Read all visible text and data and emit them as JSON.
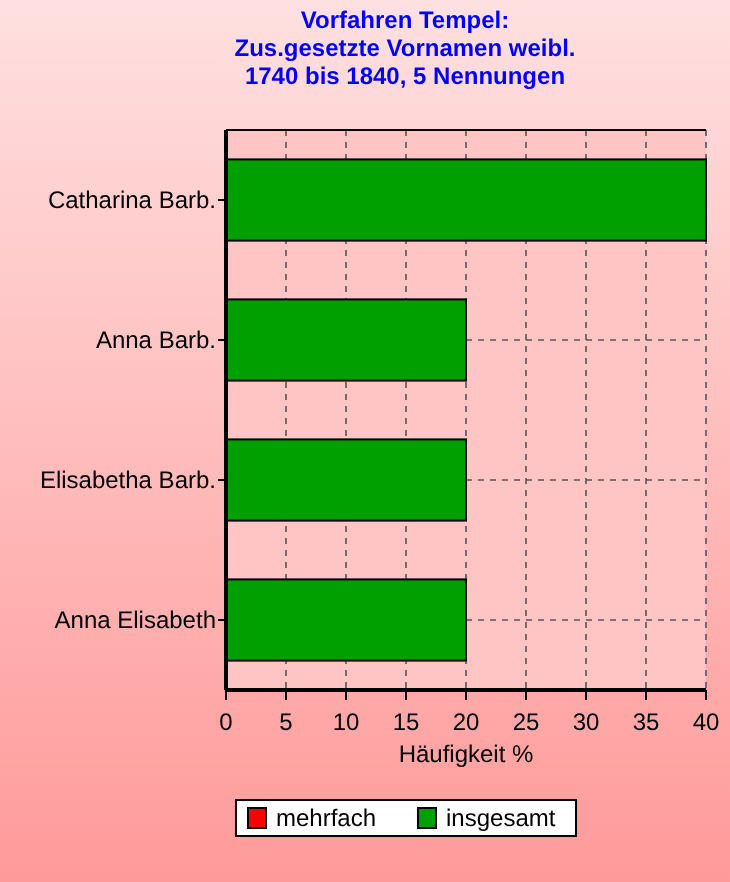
{
  "chart_data": {
    "type": "bar",
    "orientation": "horizontal",
    "title": "Vorfahren Tempel:\nZus.gesetzte Vornamen weibl.\n1740 bis 1840, 5 Nennungen",
    "xlabel": "Häufigkeit %",
    "categories": [
      "Catharina Barb.",
      "Anna Barb.",
      "Elisabetha Barb.",
      "Anna Elisabeth"
    ],
    "series": [
      {
        "name": "mehrfach",
        "color": "#ff0000",
        "values": [
          null,
          null,
          null,
          null
        ]
      },
      {
        "name": "insgesamt",
        "color": "#00a000",
        "values": [
          40,
          20,
          20,
          20
        ]
      }
    ],
    "xlim": [
      0,
      40
    ],
    "xticks": [
      0,
      5,
      10,
      15,
      20,
      25,
      30,
      35,
      40
    ],
    "grid": true,
    "legend": "bottom"
  }
}
